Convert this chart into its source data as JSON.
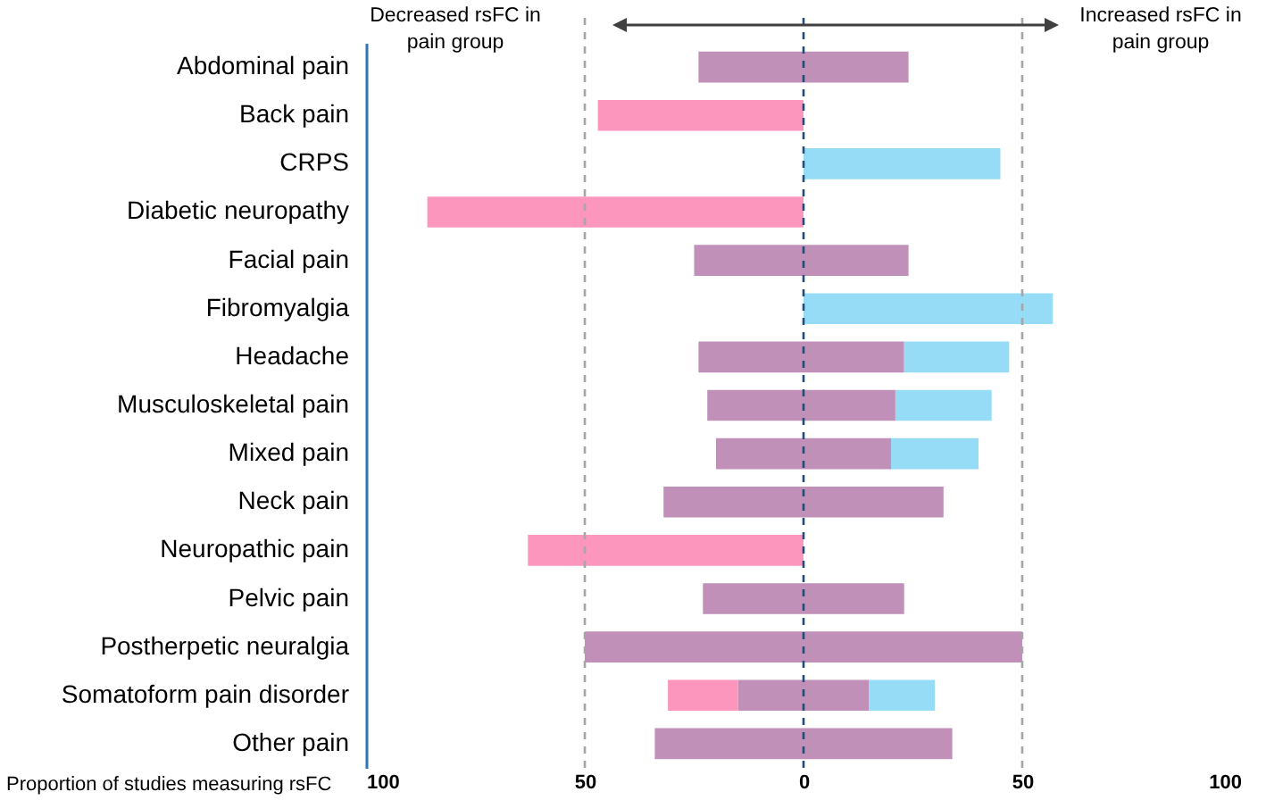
{
  "chart_data": {
    "type": "bar",
    "orientation": "horizontal",
    "stacked": true,
    "xlabel": "Proportion of studies measuring rsFC",
    "annotations": [
      "Decreased rsFC in\npain group",
      "Increased rsFC in\npain group"
    ],
    "categories": [
      "Abdominal pain",
      "Back pain",
      "CRPS",
      "Diabetic neuropathy",
      "Facial pain",
      "Fibromyalgia",
      "Headache",
      "Musculoskeletal pain",
      "Mixed pain",
      "Neck pain",
      "Neuropathic pain",
      "Pelvic pain",
      "Postherpetic neuralgia",
      "Somatoform pain disorder",
      "Other pain"
    ],
    "series": [
      {
        "color": "#c090b8",
        "values": [
          -24,
          null,
          null,
          null,
          -25,
          null,
          -24,
          -22,
          -20,
          -32,
          null,
          -23,
          -50,
          -15,
          -34
        ]
      },
      {
        "color": "#fc96bc",
        "values": [
          null,
          -47,
          null,
          -86,
          null,
          null,
          null,
          null,
          null,
          null,
          -63,
          null,
          null,
          -16,
          null
        ]
      },
      {
        "color": "#c090b8",
        "values": [
          24,
          null,
          null,
          null,
          24,
          null,
          23,
          21,
          20,
          32,
          null,
          23,
          50,
          15,
          34
        ]
      },
      {
        "color": "#96dcf6",
        "values": [
          null,
          null,
          45,
          null,
          null,
          57,
          24,
          22,
          20,
          null,
          null,
          null,
          null,
          15,
          null
        ]
      }
    ],
    "xlim": [
      -100,
      100
    ],
    "xticks": [
      {
        "value": -100,
        "label": "100"
      },
      {
        "value": -50,
        "label": "50"
      },
      0,
      50,
      100
    ],
    "ref_lines": [
      {
        "axis": "x",
        "value": -50,
        "color": "#a6a6a6",
        "line_style": "dashed"
      },
      {
        "axis": "x",
        "value": 0,
        "color": "#1f4e79",
        "line_style": "dashed"
      },
      {
        "axis": "x",
        "value": 50,
        "color": "#a6a6a6",
        "line_style": "dashed"
      }
    ],
    "grid": false
  }
}
